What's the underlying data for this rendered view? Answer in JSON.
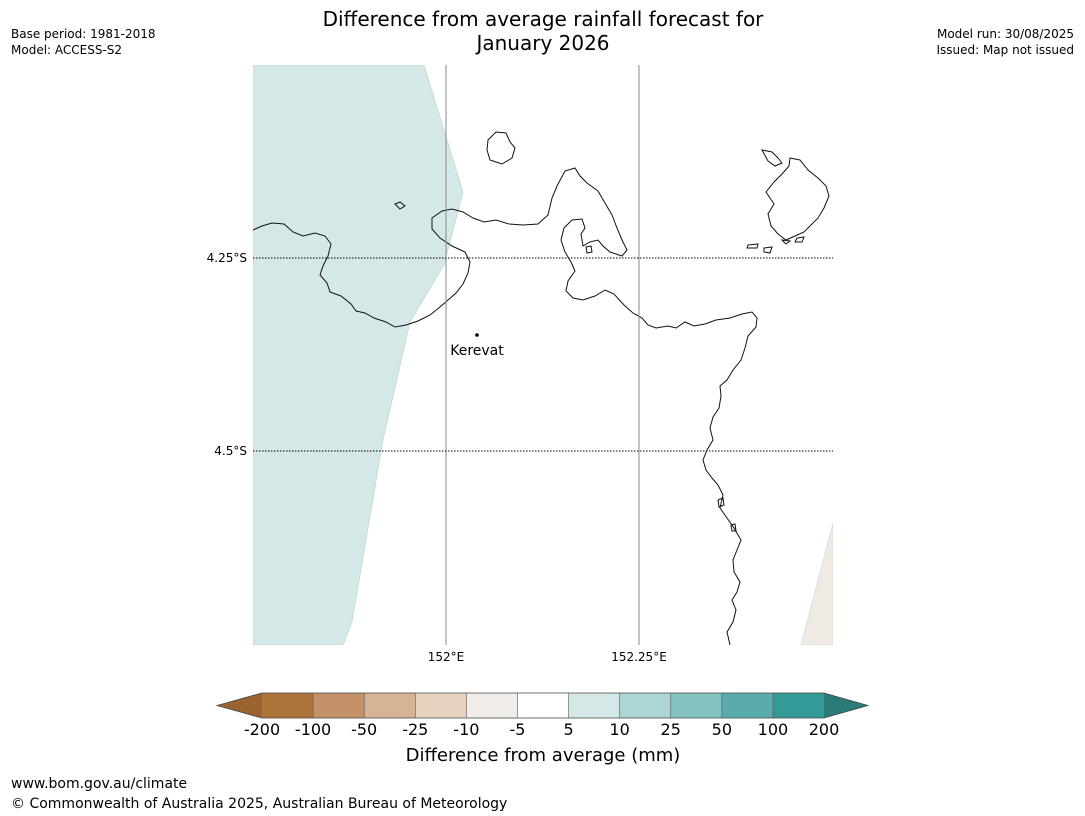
{
  "title": {
    "line1": "Difference from average rainfall forecast for",
    "line2": "January 2026"
  },
  "meta_left": {
    "base_period": "Base period: 1981-2018",
    "model": "Model: ACCESS-S2"
  },
  "meta_right": {
    "model_run": "Model run: 30/08/2025",
    "issued": "Issued: Map not issued"
  },
  "map": {
    "lat_labels": [
      "4.25°S",
      "4.5°S"
    ],
    "lon_labels": [
      "152°E",
      "152.25°E"
    ],
    "places": [
      {
        "name": "Kerevat"
      }
    ]
  },
  "colorbar": {
    "label": "Difference from average (mm)",
    "ticks": [
      "-200",
      "-100",
      "-50",
      "-25",
      "-10",
      "-5",
      "5",
      "10",
      "25",
      "50",
      "100",
      "200"
    ],
    "colors": [
      "#9a6330",
      "#ad743a",
      "#c39269",
      "#d6b394",
      "#e6d2bf",
      "#f0ede8",
      "#ffffff",
      "#d4e8e8",
      "#acd6d6",
      "#82c2c0",
      "#5aacac",
      "#349a98",
      "#2b7b78"
    ]
  },
  "footer": {
    "url": "www.bom.gov.au/climate",
    "copyright": "© Commonwealth of Australia 2025, Australian Bureau of Meteorology"
  }
}
